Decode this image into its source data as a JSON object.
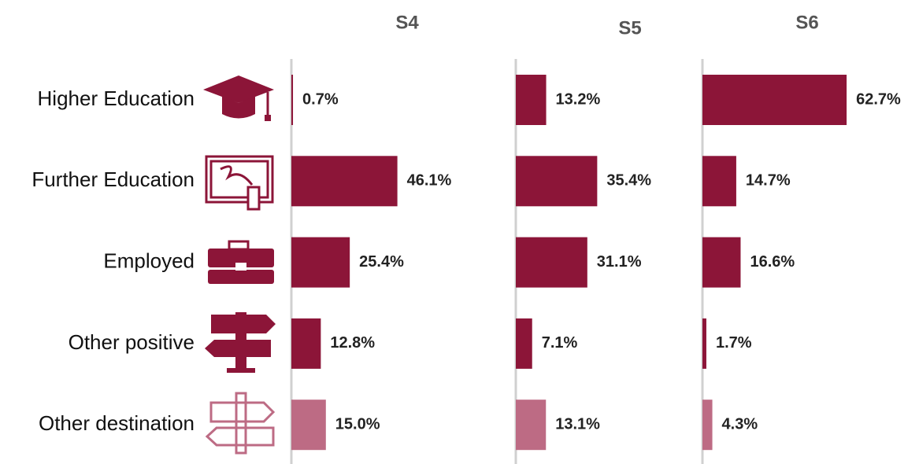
{
  "chart_data": {
    "type": "bar",
    "orientation": "horizontal",
    "categories": [
      "Higher Education",
      "Further Education",
      "Employed",
      "Other positive",
      "Other destination"
    ],
    "category_colors": [
      "#8c1538",
      "#8c1538",
      "#8c1538",
      "#8c1538",
      "#bd6b84"
    ],
    "series": [
      {
        "name": "S4",
        "values": [
          0.7,
          46.1,
          25.4,
          12.8,
          15.0
        ],
        "value_labels": [
          "0.7%",
          "46.1%",
          "25.4%",
          "12.8%",
          "15.0%"
        ]
      },
      {
        "name": "S5",
        "values": [
          13.2,
          35.4,
          31.1,
          7.1,
          13.1
        ],
        "value_labels": [
          "13.2%",
          "35.4%",
          "31.1%",
          "7.1%",
          "13.1%"
        ]
      },
      {
        "name": "S6",
        "values": [
          62.7,
          14.7,
          16.6,
          1.7,
          4.3
        ],
        "value_labels": [
          "62.7%",
          "14.7%",
          "16.6%",
          "1.7%",
          "4.3%"
        ]
      }
    ]
  }
}
